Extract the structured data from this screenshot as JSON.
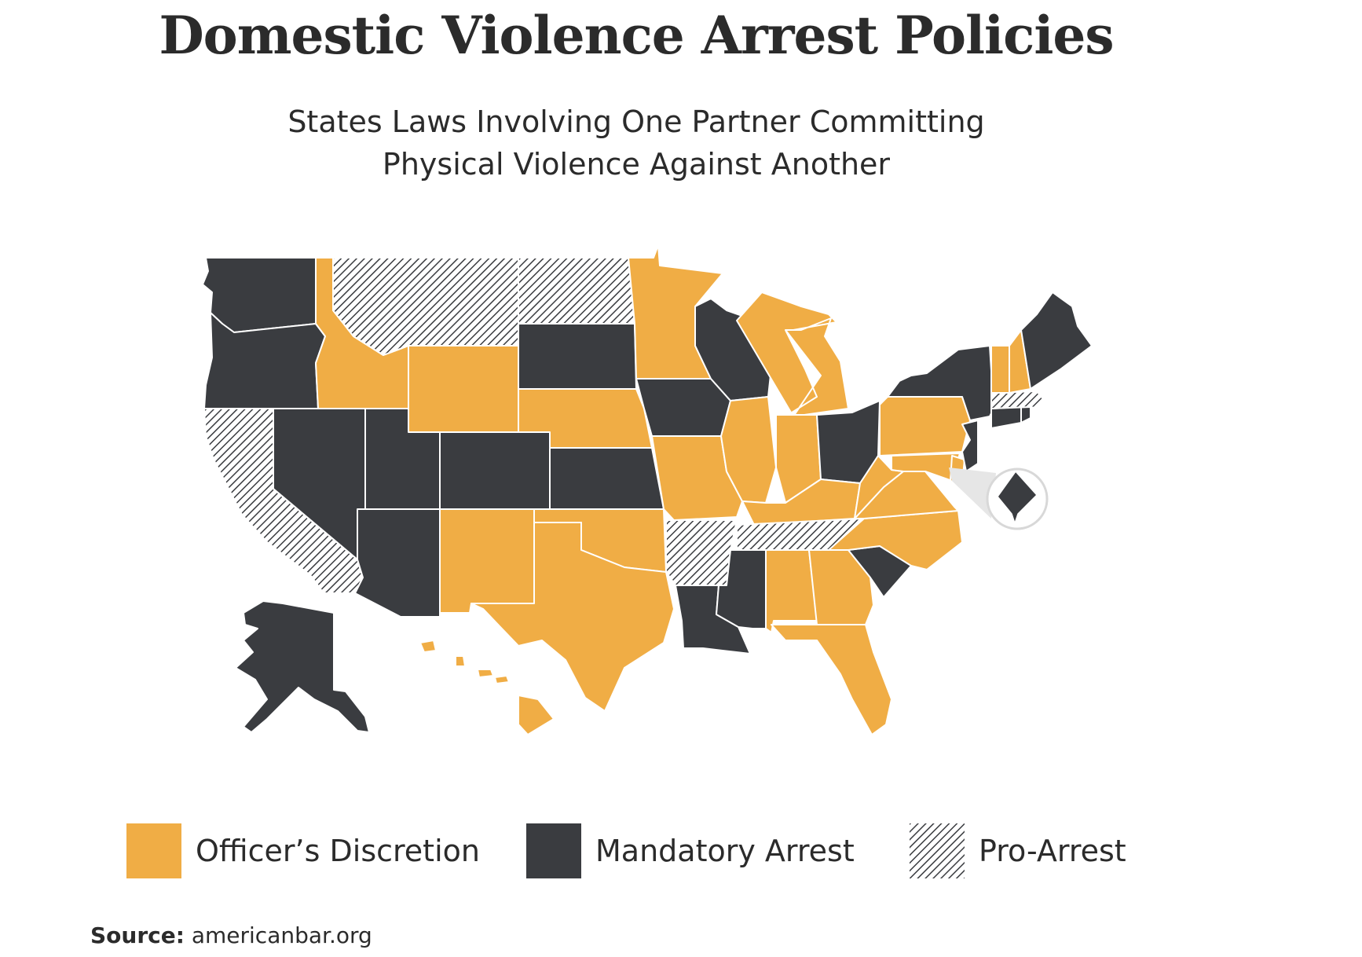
{
  "title": "Domestic Violence Arrest Policies",
  "subtitle_line1": "States Laws Involving One Partner Committing",
  "subtitle_line2": "Physical Violence Against Another",
  "colors": {
    "discretion": "#f0ad45",
    "mandatory": "#3a3c40",
    "pro_arrest_bg": "#ffffff",
    "pro_arrest_hatch": "#3a3c40",
    "border": "#ffffff"
  },
  "legend": [
    {
      "category": "discretion",
      "label": "Officer’s Discretion"
    },
    {
      "category": "mandatory",
      "label": "Mandatory Arrest"
    },
    {
      "category": "pro",
      "label": "Pro-Arrest"
    }
  ],
  "source_label": "Source:",
  "source_value": "americanbar.org",
  "states": [
    {
      "name": "WA",
      "category": "mandatory"
    },
    {
      "name": "OR",
      "category": "mandatory"
    },
    {
      "name": "CA",
      "category": "pro"
    },
    {
      "name": "NV",
      "category": "mandatory"
    },
    {
      "name": "ID",
      "category": "discretion"
    },
    {
      "name": "MT",
      "category": "pro"
    },
    {
      "name": "WY",
      "category": "discretion"
    },
    {
      "name": "UT",
      "category": "mandatory"
    },
    {
      "name": "AZ",
      "category": "mandatory"
    },
    {
      "name": "CO",
      "category": "mandatory"
    },
    {
      "name": "NM",
      "category": "discretion"
    },
    {
      "name": "ND",
      "category": "pro"
    },
    {
      "name": "SD",
      "category": "mandatory"
    },
    {
      "name": "NE",
      "category": "discretion"
    },
    {
      "name": "KS",
      "category": "mandatory"
    },
    {
      "name": "OK",
      "category": "discretion"
    },
    {
      "name": "TX",
      "category": "discretion"
    },
    {
      "name": "MN",
      "category": "discretion"
    },
    {
      "name": "IA",
      "category": "mandatory"
    },
    {
      "name": "MO",
      "category": "discretion"
    },
    {
      "name": "AR",
      "category": "pro"
    },
    {
      "name": "LA",
      "category": "mandatory"
    },
    {
      "name": "WI",
      "category": "mandatory"
    },
    {
      "name": "IL",
      "category": "discretion"
    },
    {
      "name": "MI",
      "category": "discretion"
    },
    {
      "name": "IN",
      "category": "discretion"
    },
    {
      "name": "OH",
      "category": "mandatory"
    },
    {
      "name": "KY",
      "category": "discretion"
    },
    {
      "name": "TN",
      "category": "pro"
    },
    {
      "name": "MS",
      "category": "mandatory"
    },
    {
      "name": "AL",
      "category": "discretion"
    },
    {
      "name": "GA",
      "category": "discretion"
    },
    {
      "name": "FL",
      "category": "discretion"
    },
    {
      "name": "SC",
      "category": "mandatory"
    },
    {
      "name": "NC",
      "category": "discretion"
    },
    {
      "name": "VA",
      "category": "discretion"
    },
    {
      "name": "WV",
      "category": "discretion"
    },
    {
      "name": "PA",
      "category": "discretion"
    },
    {
      "name": "NY",
      "category": "mandatory"
    },
    {
      "name": "NJ",
      "category": "mandatory"
    },
    {
      "name": "DE",
      "category": "discretion"
    },
    {
      "name": "MD",
      "category": "discretion"
    },
    {
      "name": "CT",
      "category": "mandatory"
    },
    {
      "name": "RI",
      "category": "mandatory"
    },
    {
      "name": "MA",
      "category": "pro"
    },
    {
      "name": "VT",
      "category": "discretion"
    },
    {
      "name": "NH",
      "category": "discretion"
    },
    {
      "name": "ME",
      "category": "mandatory"
    },
    {
      "name": "AK",
      "category": "mandatory"
    },
    {
      "name": "HI",
      "category": "discretion"
    },
    {
      "name": "DC",
      "category": "mandatory"
    }
  ]
}
